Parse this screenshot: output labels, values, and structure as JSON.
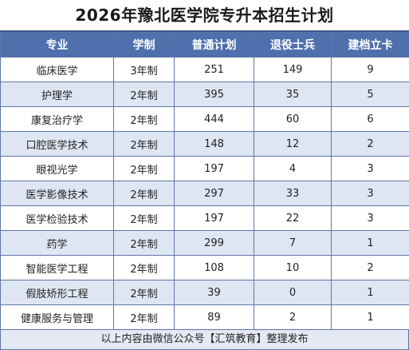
{
  "title": "2026年豫北医学院专升本招生计划",
  "headers": [
    "专业",
    "学制",
    "普通计划",
    "退役士兵",
    "建档立卡"
  ],
  "rows": [
    [
      "临床医学",
      "3年制",
      "251",
      "149",
      "9"
    ],
    [
      "护理学",
      "2年制",
      "395",
      "35",
      "5"
    ],
    [
      "康复治疗学",
      "2年制",
      "444",
      "60",
      "6"
    ],
    [
      "口腔医学技术",
      "2年制",
      "148",
      "12",
      "2"
    ],
    [
      "眼视光学",
      "2年制",
      "197",
      "4",
      "3"
    ],
    [
      "医学影像技术",
      "2年制",
      "297",
      "33",
      "3"
    ],
    [
      "医学检验技术",
      "2年制",
      "197",
      "22",
      "3"
    ],
    [
      "药学",
      "2年制",
      "299",
      "7",
      "1"
    ],
    [
      "智能医学工程",
      "2年制",
      "108",
      "10",
      "2"
    ],
    [
      "假肢矫形工程",
      "2年制",
      "39",
      "0",
      "1"
    ],
    [
      "健康服务与管理",
      "2年制",
      "89",
      "2",
      "1"
    ]
  ],
  "footer": "以上内容由微信公众号【汇筑教育】整理发布",
  "colors": {
    "header_bg": "#4f6fad",
    "stripe": "#dfe6f3",
    "border": "#5e77a5"
  }
}
